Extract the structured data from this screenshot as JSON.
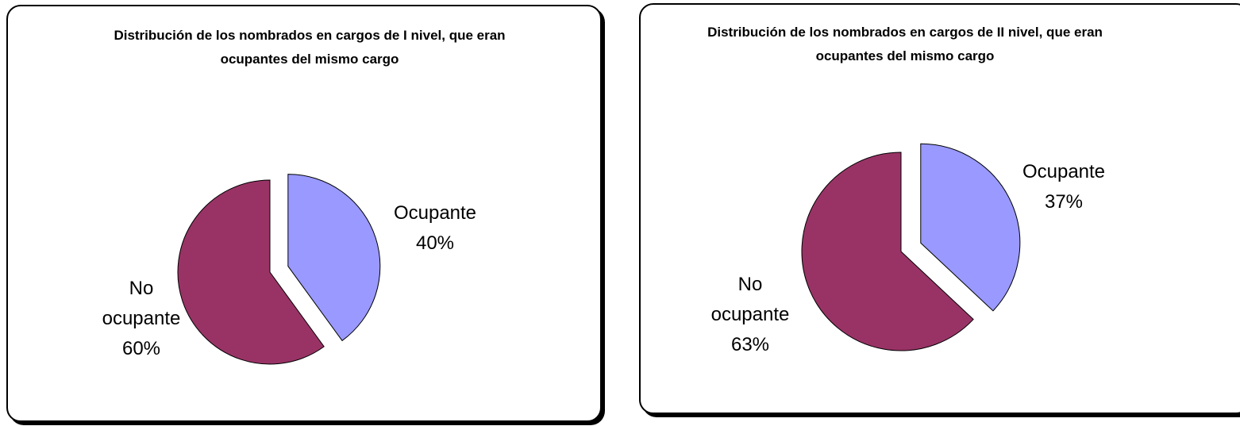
{
  "chart_data": [
    {
      "type": "pie",
      "title": "Distribución de los nombrados en cargos de I nivel, que eran ocupantes del mismo cargo",
      "categories": [
        "Ocupante",
        "No ocupante"
      ],
      "values": [
        40,
        60
      ],
      "value_labels": [
        "40%",
        "60%"
      ],
      "colors": [
        "#9999ff",
        "#993366"
      ]
    },
    {
      "type": "pie",
      "title": "Distribución de los nombrados en cargos de II nivel, que eran ocupantes del mismo cargo",
      "categories": [
        "Ocupante",
        "No ocupante"
      ],
      "values": [
        37,
        63
      ],
      "value_labels": [
        "37%",
        "63%"
      ],
      "colors": [
        "#9999ff",
        "#993366"
      ]
    }
  ]
}
